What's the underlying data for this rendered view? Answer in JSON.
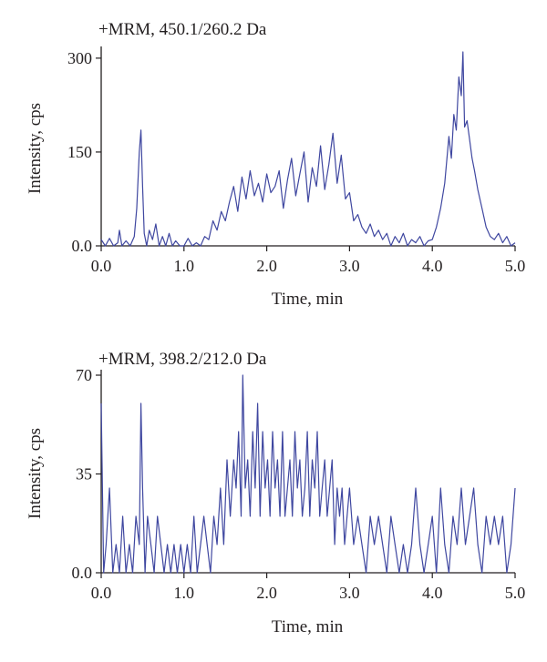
{
  "chart_data": [
    {
      "type": "line",
      "title": "+MRM, 450.1/260.2 Da",
      "xlabel": "Time, min",
      "ylabel": "Intensity, cps",
      "xlim": [
        0,
        5
      ],
      "ylim": [
        0,
        310
      ],
      "xticks": [
        "0.0",
        "1.0",
        "2.0",
        "3.0",
        "4.0",
        "5.0"
      ],
      "yticks": [
        "0.0",
        "150",
        "300"
      ],
      "ytick_values": [
        0,
        150,
        300
      ],
      "grid": false,
      "color": "#3f47a0",
      "series": [
        {
          "x": [
            0,
            0.05,
            0.1,
            0.15,
            0.2,
            0.22,
            0.25,
            0.3,
            0.35,
            0.4,
            0.43,
            0.46,
            0.48,
            0.5,
            0.52,
            0.55,
            0.58,
            0.62,
            0.66,
            0.7,
            0.74,
            0.78,
            0.82,
            0.86,
            0.9,
            0.95,
            1.0,
            1.05,
            1.1,
            1.15,
            1.2,
            1.25,
            1.3,
            1.35,
            1.4,
            1.45,
            1.5,
            1.55,
            1.6,
            1.65,
            1.7,
            1.75,
            1.8,
            1.85,
            1.9,
            1.95,
            2.0,
            2.05,
            2.1,
            2.15,
            2.2,
            2.25,
            2.3,
            2.35,
            2.4,
            2.45,
            2.5,
            2.55,
            2.6,
            2.65,
            2.7,
            2.75,
            2.8,
            2.85,
            2.9,
            2.95,
            3.0,
            3.05,
            3.1,
            3.15,
            3.2,
            3.25,
            3.3,
            3.35,
            3.4,
            3.45,
            3.5,
            3.55,
            3.6,
            3.65,
            3.7,
            3.75,
            3.8,
            3.85,
            3.9,
            3.95,
            4.0,
            4.05,
            4.1,
            4.15,
            4.2,
            4.23,
            4.26,
            4.29,
            4.32,
            4.35,
            4.37,
            4.39,
            4.42,
            4.45,
            4.48,
            4.51,
            4.55,
            4.6,
            4.65,
            4.7,
            4.75,
            4.8,
            4.85,
            4.9,
            4.95,
            5.0
          ],
          "y": [
            10,
            0,
            12,
            0,
            5,
            25,
            0,
            8,
            0,
            15,
            60,
            150,
            185,
            95,
            20,
            0,
            25,
            10,
            35,
            0,
            15,
            0,
            20,
            0,
            8,
            0,
            0,
            12,
            0,
            5,
            0,
            15,
            10,
            40,
            25,
            55,
            40,
            70,
            95,
            55,
            110,
            75,
            120,
            80,
            100,
            70,
            115,
            85,
            95,
            120,
            60,
            105,
            140,
            80,
            115,
            150,
            70,
            125,
            95,
            160,
            90,
            130,
            180,
            100,
            145,
            75,
            85,
            40,
            50,
            30,
            20,
            35,
            15,
            25,
            10,
            20,
            0,
            15,
            5,
            20,
            0,
            10,
            5,
            15,
            0,
            8,
            10,
            30,
            60,
            100,
            175,
            140,
            210,
            185,
            270,
            240,
            310,
            190,
            200,
            170,
            140,
            120,
            90,
            60,
            30,
            15,
            10,
            20,
            5,
            15,
            0,
            5
          ]
        }
      ]
    },
    {
      "type": "line",
      "title": "+MRM, 398.2/212.0 Da",
      "xlabel": "Time, min",
      "ylabel": "Intensity, cps",
      "xlim": [
        0,
        5
      ],
      "ylim": [
        0,
        70
      ],
      "xticks": [
        "0.0",
        "1.0",
        "2.0",
        "3.0",
        "4.0",
        "5.0"
      ],
      "yticks": [
        "0.0",
        "35",
        "70"
      ],
      "ytick_values": [
        0,
        35,
        70
      ],
      "grid": false,
      "color": "#3f47a0",
      "series": [
        {
          "x": [
            0,
            0.03,
            0.06,
            0.1,
            0.14,
            0.18,
            0.22,
            0.26,
            0.3,
            0.34,
            0.38,
            0.42,
            0.46,
            0.48,
            0.5,
            0.53,
            0.56,
            0.6,
            0.64,
            0.68,
            0.72,
            0.76,
            0.8,
            0.84,
            0.88,
            0.92,
            0.96,
            1.0,
            1.04,
            1.08,
            1.12,
            1.16,
            1.2,
            1.24,
            1.28,
            1.32,
            1.36,
            1.4,
            1.44,
            1.48,
            1.52,
            1.56,
            1.6,
            1.63,
            1.66,
            1.69,
            1.71,
            1.74,
            1.77,
            1.8,
            1.83,
            1.86,
            1.89,
            1.92,
            1.95,
            1.98,
            2.01,
            2.04,
            2.07,
            2.1,
            2.13,
            2.16,
            2.19,
            2.22,
            2.25,
            2.28,
            2.31,
            2.34,
            2.37,
            2.4,
            2.43,
            2.46,
            2.49,
            2.52,
            2.55,
            2.58,
            2.61,
            2.64,
            2.67,
            2.7,
            2.73,
            2.76,
            2.79,
            2.82,
            2.85,
            2.88,
            2.91,
            2.94,
            2.97,
            3.0,
            3.05,
            3.1,
            3.15,
            3.2,
            3.25,
            3.3,
            3.35,
            3.4,
            3.45,
            3.5,
            3.55,
            3.6,
            3.65,
            3.7,
            3.75,
            3.8,
            3.85,
            3.9,
            3.95,
            4.0,
            4.05,
            4.1,
            4.15,
            4.2,
            4.25,
            4.3,
            4.35,
            4.4,
            4.45,
            4.5,
            4.55,
            4.6,
            4.65,
            4.7,
            4.75,
            4.8,
            4.85,
            4.9,
            4.95,
            5.0
          ],
          "y": [
            60,
            0,
            10,
            30,
            0,
            10,
            0,
            20,
            0,
            10,
            0,
            20,
            10,
            60,
            30,
            0,
            20,
            10,
            0,
            20,
            10,
            0,
            10,
            0,
            10,
            0,
            10,
            0,
            10,
            0,
            20,
            0,
            10,
            20,
            10,
            0,
            20,
            10,
            30,
            10,
            40,
            20,
            40,
            30,
            50,
            20,
            70,
            30,
            40,
            20,
            50,
            30,
            60,
            20,
            50,
            30,
            40,
            20,
            50,
            30,
            40,
            20,
            50,
            20,
            30,
            40,
            20,
            50,
            30,
            40,
            20,
            30,
            50,
            20,
            40,
            30,
            50,
            20,
            30,
            40,
            20,
            30,
            40,
            10,
            30,
            20,
            30,
            10,
            20,
            30,
            10,
            20,
            10,
            0,
            20,
            10,
            20,
            10,
            0,
            20,
            10,
            0,
            10,
            0,
            10,
            30,
            10,
            0,
            10,
            20,
            0,
            30,
            10,
            0,
            20,
            10,
            30,
            10,
            20,
            30,
            10,
            0,
            20,
            10,
            20,
            10,
            20,
            0,
            10,
            30
          ]
        }
      ]
    }
  ]
}
